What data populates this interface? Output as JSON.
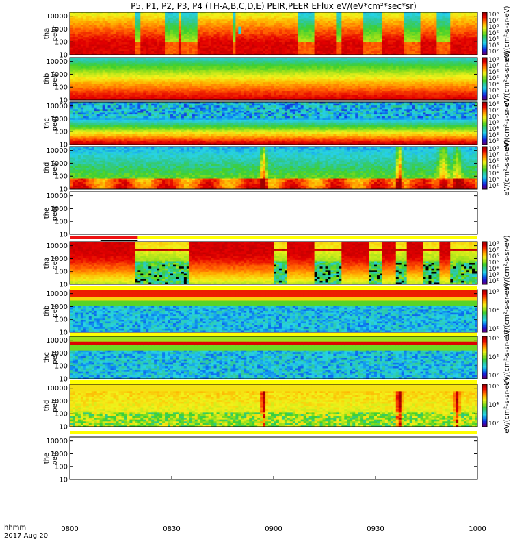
{
  "chart_data": {
    "type": "heatmap",
    "title": "P5, P1, P2, P3, P4 (TH-A,B,C,D,E) PEIR,PEER EFlux eV/(eV*cm²*sec*sr)",
    "x_axis": {
      "label_line1": "hhmm",
      "label_line2": "2017 Aug 20",
      "ticks": [
        "0800",
        "0830",
        "0900",
        "0930",
        "1000"
      ],
      "range_minutes": [
        0,
        120
      ]
    },
    "y_ticks": [
      "10000",
      "1000",
      "100",
      "10"
    ],
    "colorbar_unit": "eV/(cm²-s-sr-eV)",
    "colorbar_labels": [
      "10⁸",
      "10⁷",
      "10⁶",
      "10⁵",
      "10⁴",
      "10³",
      "10²"
    ],
    "colorbar_labels_short": [
      "10⁶",
      "10⁴",
      "10²"
    ],
    "panels": [
      {
        "label_line1": "tha",
        "label_line2": "peer",
        "species": "electron",
        "probe": "a",
        "has_data": true,
        "pattern": "tha_peer"
      },
      {
        "label_line1": "thb",
        "label_line2": "peer",
        "species": "electron",
        "probe": "b",
        "has_data": true,
        "pattern": "thb_peer"
      },
      {
        "label_line1": "thc",
        "label_line2": "peer",
        "species": "electron",
        "probe": "c",
        "has_data": true,
        "pattern": "thc_peer"
      },
      {
        "label_line1": "thd",
        "label_line2": "peer",
        "species": "electron",
        "probe": "d",
        "has_data": true,
        "pattern": "thd_peer"
      },
      {
        "label_line1": "the",
        "label_line2": "peer",
        "species": "electron",
        "probe": "e",
        "has_data": false,
        "pattern": "empty"
      },
      {
        "label_line1": "tha",
        "label_line2": "peir",
        "species": "ion",
        "probe": "a",
        "has_data": true,
        "pattern": "tha_peir"
      },
      {
        "label_line1": "thb",
        "label_line2": "peir",
        "species": "ion",
        "probe": "b",
        "has_data": true,
        "pattern": "thb_peir"
      },
      {
        "label_line1": "thc",
        "label_line2": "peir",
        "species": "ion",
        "probe": "c",
        "has_data": true,
        "pattern": "thc_peir"
      },
      {
        "label_line1": "thd",
        "label_line2": "peir",
        "species": "ion",
        "probe": "d",
        "has_data": true,
        "pattern": "thd_peir"
      },
      {
        "label_line1": "the",
        "label_line2": "peir",
        "species": "ion",
        "probe": "e",
        "has_data": false,
        "pattern": "empty"
      }
    ],
    "mode_bar_colors": {
      "red": "#ee1111",
      "black": "#000000",
      "yellow": "#ffff00"
    },
    "colormap": [
      "#5a007f",
      "#1a18d8",
      "#0a7cf0",
      "#27d3e6",
      "#2ec8a0",
      "#3ed02e",
      "#9be01a",
      "#f2f21a",
      "#ffb000",
      "#ff5a00",
      "#e40000",
      "#a00000"
    ]
  }
}
